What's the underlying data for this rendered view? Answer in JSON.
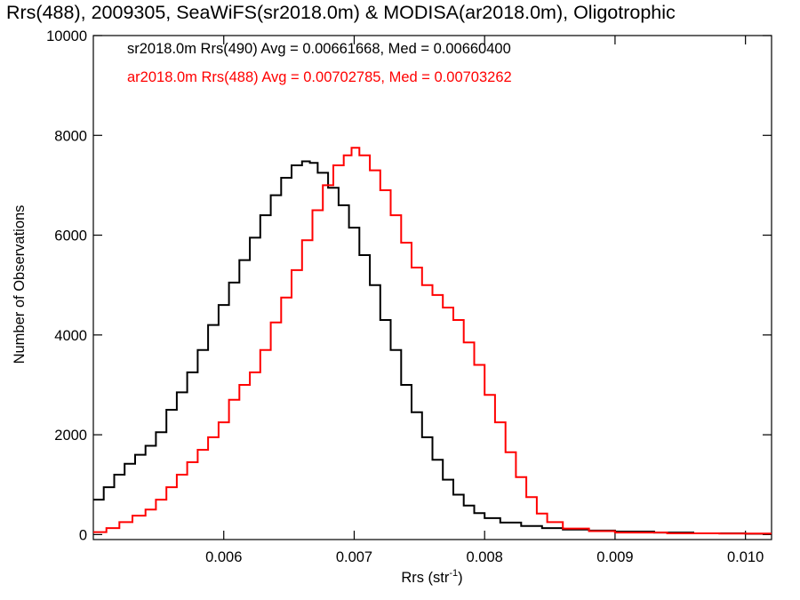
{
  "chart_data": {
    "type": "line",
    "title": "Rrs(488), 2009305, SeaWiFS(sr2018.0m) & MODISA(ar2018.0m), Oligotrophic",
    "xlabel": "Rrs (str",
    "xlabel_sup": "-1",
    "xlabel_end": ")",
    "ylabel": "Number of Observations",
    "xlim": [
      0.005,
      0.0102
    ],
    "ylim": [
      -100,
      10000
    ],
    "x_ticks": [
      0.006,
      0.007,
      0.008,
      0.009,
      0.01
    ],
    "x_tick_labels": [
      "0.006",
      "0.007",
      "0.008",
      "0.009",
      "0.010"
    ],
    "y_ticks": [
      0,
      2000,
      4000,
      6000,
      8000,
      10000
    ],
    "y_tick_labels": [
      "0",
      "2000",
      "4000",
      "6000",
      "8000",
      "10000"
    ],
    "grid": false,
    "legend_position": "top-left",
    "series": [
      {
        "label": "sr2018.0m Rrs(490) Avg = 0.00661668, Med = 0.00660400",
        "color": "#000000",
        "step": true,
        "points": [
          [
            0.005,
            700
          ],
          [
            0.00508,
            950
          ],
          [
            0.00516,
            1200
          ],
          [
            0.00524,
            1420
          ],
          [
            0.00532,
            1600
          ],
          [
            0.0054,
            1780
          ],
          [
            0.00548,
            2050
          ],
          [
            0.00556,
            2500
          ],
          [
            0.00564,
            2850
          ],
          [
            0.00572,
            3250
          ],
          [
            0.0058,
            3700
          ],
          [
            0.00588,
            4200
          ],
          [
            0.00596,
            4600
          ],
          [
            0.00604,
            5050
          ],
          [
            0.00612,
            5500
          ],
          [
            0.0062,
            5950
          ],
          [
            0.00628,
            6400
          ],
          [
            0.00636,
            6800
          ],
          [
            0.00644,
            7150
          ],
          [
            0.00652,
            7400
          ],
          [
            0.0066,
            7480
          ],
          [
            0.00666,
            7450
          ],
          [
            0.00672,
            7250
          ],
          [
            0.0068,
            6950
          ],
          [
            0.00688,
            6600
          ],
          [
            0.00696,
            6150
          ],
          [
            0.00704,
            5600
          ],
          [
            0.00712,
            5000
          ],
          [
            0.0072,
            4300
          ],
          [
            0.00728,
            3700
          ],
          [
            0.00736,
            3000
          ],
          [
            0.00744,
            2450
          ],
          [
            0.00752,
            1950
          ],
          [
            0.0076,
            1500
          ],
          [
            0.00768,
            1100
          ],
          [
            0.00776,
            800
          ],
          [
            0.00784,
            580
          ],
          [
            0.00792,
            430
          ],
          [
            0.008,
            330
          ],
          [
            0.00812,
            240
          ],
          [
            0.00828,
            170
          ],
          [
            0.00844,
            130
          ],
          [
            0.0086,
            100
          ],
          [
            0.0088,
            80
          ],
          [
            0.009,
            60
          ],
          [
            0.0093,
            40
          ],
          [
            0.0096,
            25
          ],
          [
            0.01,
            15
          ],
          [
            0.0102,
            10
          ]
        ]
      },
      {
        "label": "ar2018.0m Rrs(488) Avg = 0.00702785, Med = 0.00703262",
        "color": "#ff0000",
        "step": true,
        "points": [
          [
            0.005,
            50
          ],
          [
            0.0051,
            130
          ],
          [
            0.0052,
            250
          ],
          [
            0.0053,
            380
          ],
          [
            0.0054,
            500
          ],
          [
            0.00548,
            700
          ],
          [
            0.00556,
            950
          ],
          [
            0.00564,
            1200
          ],
          [
            0.00572,
            1450
          ],
          [
            0.0058,
            1700
          ],
          [
            0.00588,
            1950
          ],
          [
            0.00596,
            2250
          ],
          [
            0.00604,
            2700
          ],
          [
            0.00612,
            3000
          ],
          [
            0.0062,
            3250
          ],
          [
            0.00628,
            3700
          ],
          [
            0.00636,
            4250
          ],
          [
            0.00644,
            4750
          ],
          [
            0.00652,
            5300
          ],
          [
            0.0066,
            5900
          ],
          [
            0.00668,
            6500
          ],
          [
            0.00676,
            7000
          ],
          [
            0.00684,
            7400
          ],
          [
            0.00692,
            7600
          ],
          [
            0.00698,
            7750
          ],
          [
            0.00704,
            7600
          ],
          [
            0.00712,
            7300
          ],
          [
            0.0072,
            6900
          ],
          [
            0.00728,
            6400
          ],
          [
            0.00736,
            5850
          ],
          [
            0.00744,
            5350
          ],
          [
            0.00752,
            5000
          ],
          [
            0.0076,
            4800
          ],
          [
            0.00768,
            4550
          ],
          [
            0.00776,
            4300
          ],
          [
            0.00784,
            3850
          ],
          [
            0.00792,
            3400
          ],
          [
            0.008,
            2800
          ],
          [
            0.00808,
            2250
          ],
          [
            0.00816,
            1650
          ],
          [
            0.00824,
            1150
          ],
          [
            0.00832,
            750
          ],
          [
            0.0084,
            420
          ],
          [
            0.00848,
            250
          ],
          [
            0.0086,
            120
          ],
          [
            0.0088,
            70
          ],
          [
            0.009,
            40
          ],
          [
            0.0094,
            25
          ],
          [
            0.0098,
            20
          ],
          [
            0.0102,
            15
          ]
        ]
      }
    ]
  }
}
